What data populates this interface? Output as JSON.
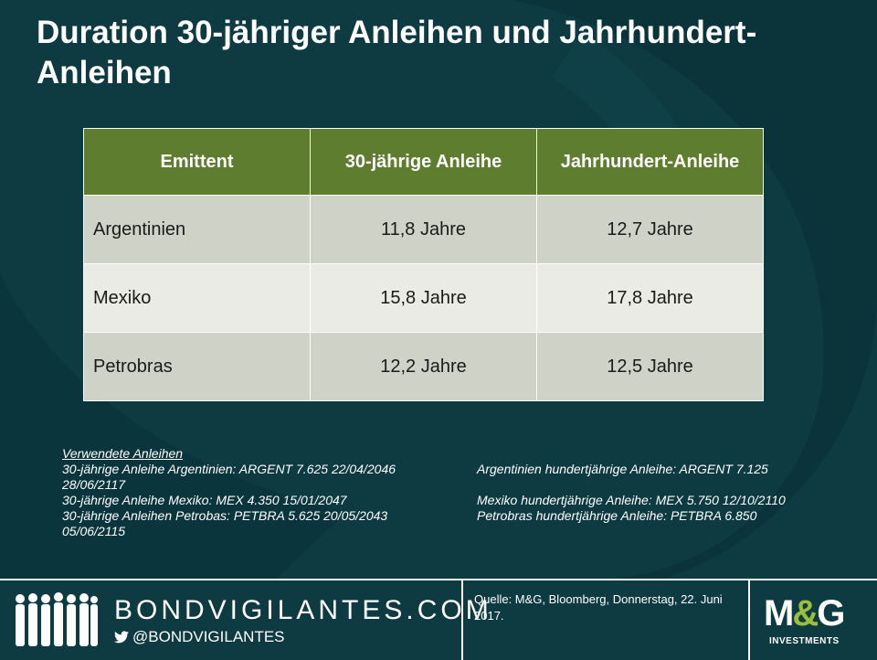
{
  "title": "Duration 30-jähriger Anleihen und Jahrhundert-Anleihen",
  "table": {
    "headers": [
      "Emittent",
      "30-jährige Anleihe",
      "Jahrhundert-Anleihe"
    ],
    "rows": [
      {
        "issuer": "Argentinien",
        "thirty_year": "11,8 Jahre",
        "century": "12,7 Jahre"
      },
      {
        "issuer": "Mexiko",
        "thirty_year": "15,8 Jahre",
        "century": "17,8 Jahre"
      },
      {
        "issuer": "Petrobras",
        "thirty_year": "12,2 Jahre",
        "century": "12,5 Jahre"
      }
    ]
  },
  "notes": {
    "heading": "Verwendete Anleihen",
    "line1_left": "30-jährige Anleihe Argentinien: ARGENT 7.625 22/04/2046",
    "line1_right": "Argentinien hundertjährige Anleihe: ARGENT 7.125",
    "line1_wrap": "28/06/2117",
    "line2_left": "30-jährige Anleihe Mexiko: MEX 4.350 15/01/2047",
    "line2_right": "Mexiko hundertjährige Anleihe: MEX 5.750 12/10/2110",
    "line3_left": "30-jährige Anleihen Petrobas: PETBRA 5.625 20/05/2043",
    "line3_right": "Petrobras hundertjährige Anleihe: PETBRA 6.850",
    "line3_wrap": "05/06/2115"
  },
  "footer": {
    "brand": "BONDVIGILANTES.COM",
    "handle": "@BONDVIGILANTES",
    "source": "Quelle: M&G, Bloomberg, Donnerstag, 22. Juni 2017.",
    "logo_m": "M",
    "logo_amp": "&",
    "logo_g": "G",
    "logo_sub": "INVESTMENTS"
  },
  "colors": {
    "background": "#0e3a42",
    "header_green": "#5e7d2e",
    "row_dark": "#cfd3c7",
    "row_light": "#e9ebe4",
    "logo_amp": "#9bbf3c"
  },
  "icons": [
    "people-silhouettes-icon",
    "twitter-bird-icon"
  ]
}
